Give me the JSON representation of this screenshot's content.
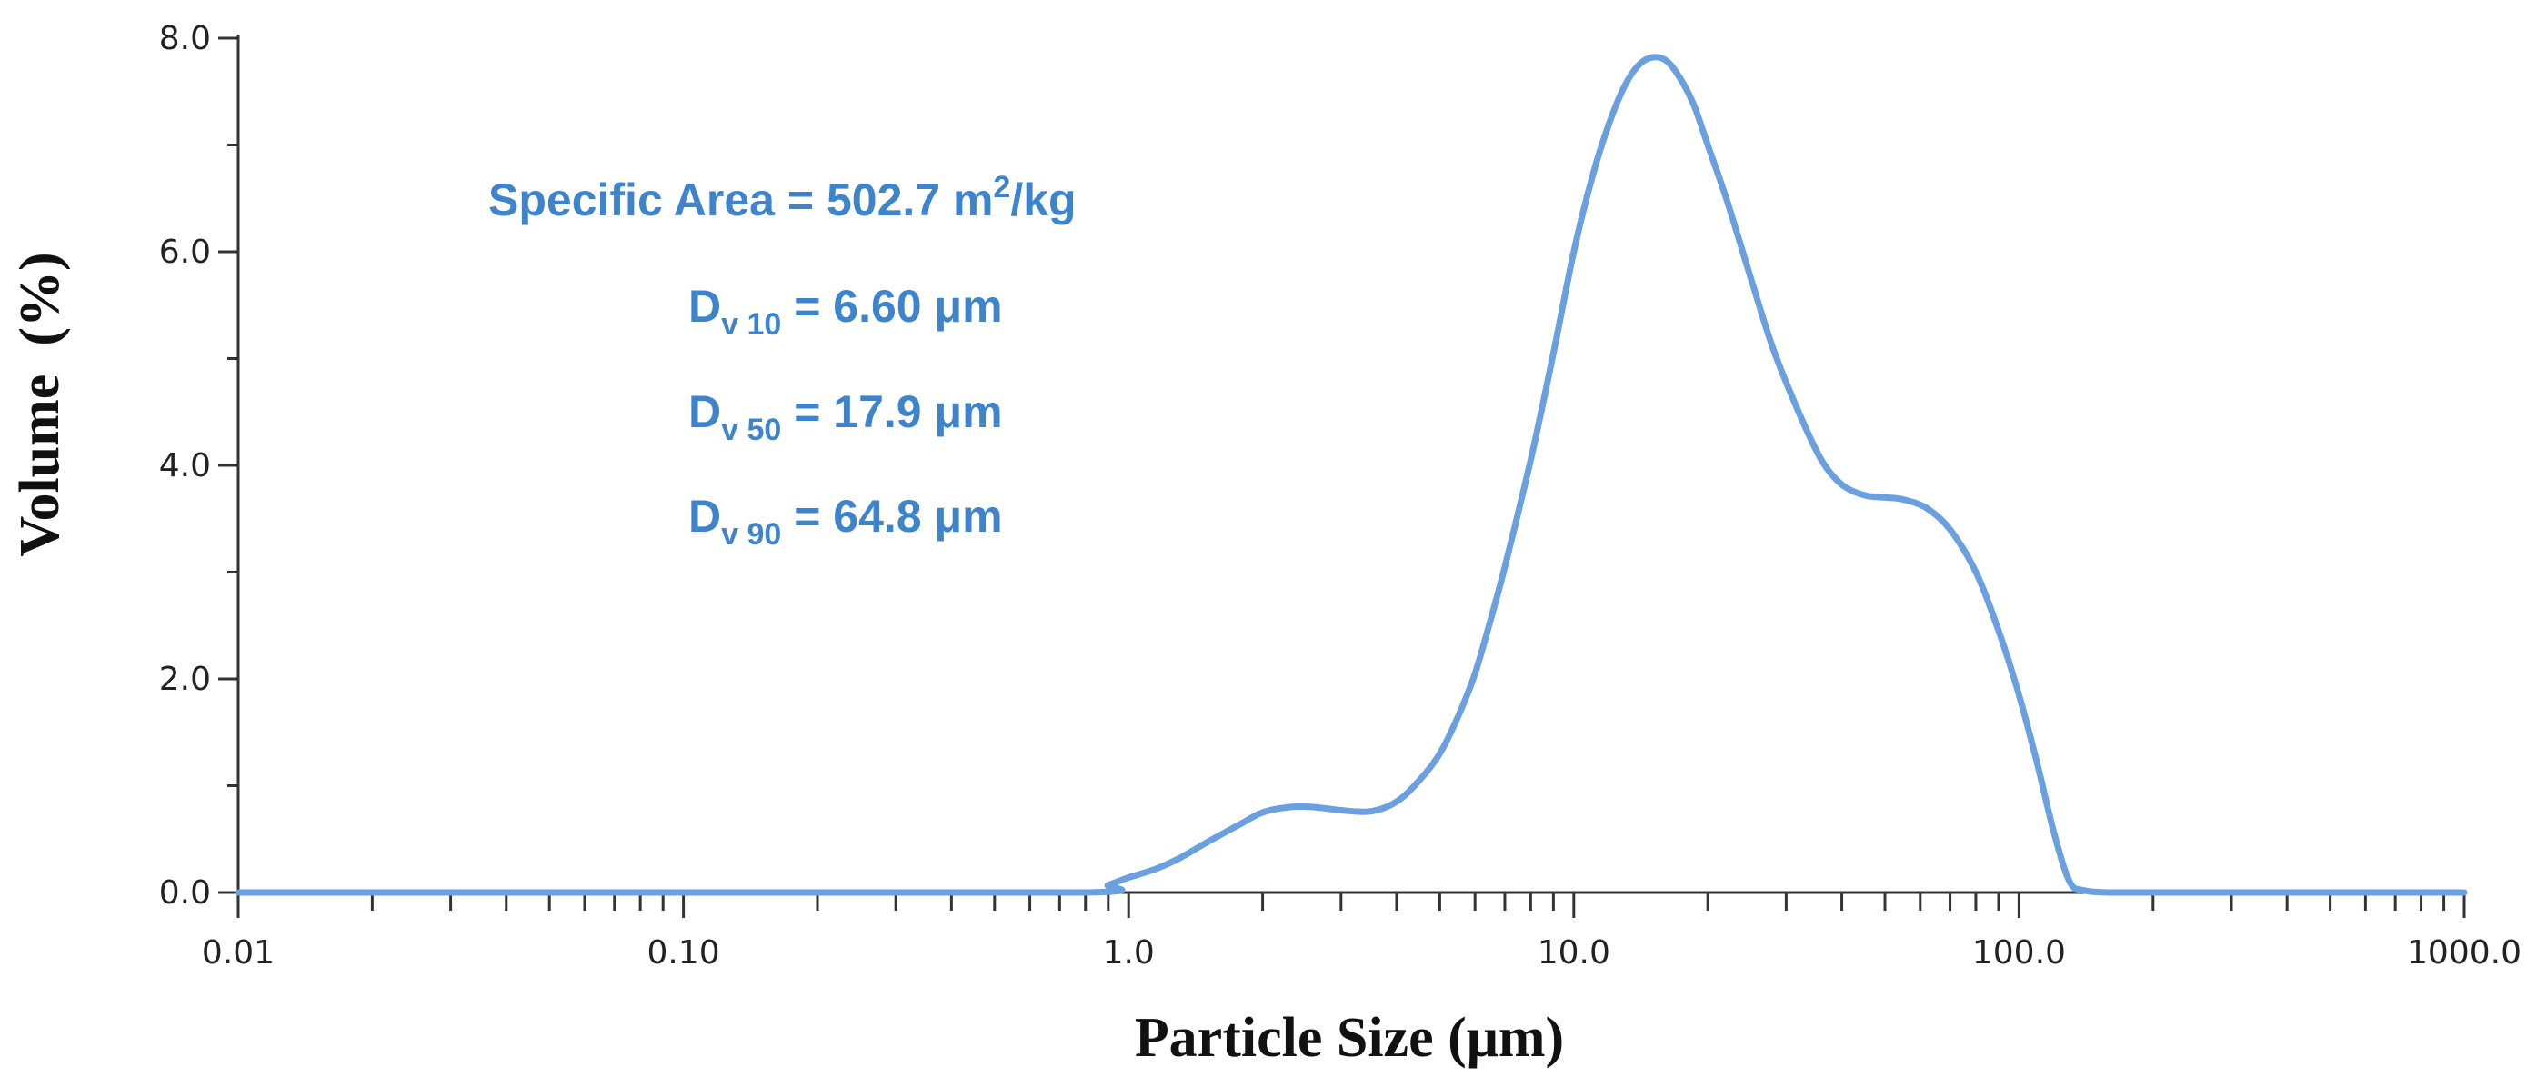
{
  "chart_data": {
    "type": "line",
    "xscale": "log",
    "xlim": [
      0.01,
      1000.0
    ],
    "ylim": [
      0.0,
      8.0
    ],
    "xlabel": "Particle Size (μm)",
    "ylabel": "Volume  (%)",
    "x_ticks": [
      "0.01",
      "0.10",
      "1.0",
      "10.0",
      "100.0",
      "1000.0"
    ],
    "y_ticks": [
      "0.0",
      "2.0",
      "4.0",
      "6.0",
      "8.0"
    ],
    "grid": false,
    "series_color": "#6a9fe0",
    "annotations": {
      "specific_area": {
        "prefix": "Specific Area = 502.7 m",
        "sup": "2",
        "suffix": "/kg"
      },
      "dv10": {
        "main": "D",
        "sub": "v 10",
        "value": " = 6.60 μm"
      },
      "dv50": {
        "main": "D",
        "sub": "v 50",
        "value": " = 17.9 μm"
      },
      "dv90": {
        "main": "D",
        "sub": "v 90",
        "value": " = 64.8 μm"
      }
    },
    "annotation_color": "#3d84cc",
    "x": [
      0.01,
      0.1,
      0.8,
      0.9,
      1.0,
      1.15,
      1.3,
      1.5,
      1.8,
      2.0,
      2.3,
      2.6,
      3.0,
      3.5,
      4.0,
      4.5,
      5.0,
      5.5,
      6.0,
      6.5,
      7.0,
      8.0,
      9.0,
      10.0,
      11.0,
      12.0,
      13.0,
      14.0,
      15.0,
      16.0,
      17.0,
      18.5,
      20.0,
      22.0,
      25.0,
      28.0,
      32.0,
      36.0,
      40.0,
      45.0,
      50.0,
      55.0,
      62.0,
      70.0,
      80.0,
      90.0,
      100.0,
      110.0,
      120.0,
      130.0,
      140.0,
      160.0,
      200.0,
      500.0,
      1000.0
    ],
    "y": [
      0.0,
      0.0,
      0.0,
      0.07,
      0.14,
      0.22,
      0.32,
      0.47,
      0.65,
      0.75,
      0.8,
      0.8,
      0.77,
      0.76,
      0.85,
      1.05,
      1.3,
      1.65,
      2.05,
      2.55,
      3.05,
      4.05,
      5.05,
      6.0,
      6.7,
      7.2,
      7.55,
      7.75,
      7.82,
      7.8,
      7.68,
      7.4,
      7.0,
      6.5,
      5.75,
      5.1,
      4.5,
      4.05,
      3.82,
      3.72,
      3.7,
      3.68,
      3.6,
      3.4,
      3.0,
      2.45,
      1.85,
      1.2,
      0.55,
      0.1,
      0.02,
      0.0,
      0.0,
      0.0,
      0.0
    ]
  }
}
